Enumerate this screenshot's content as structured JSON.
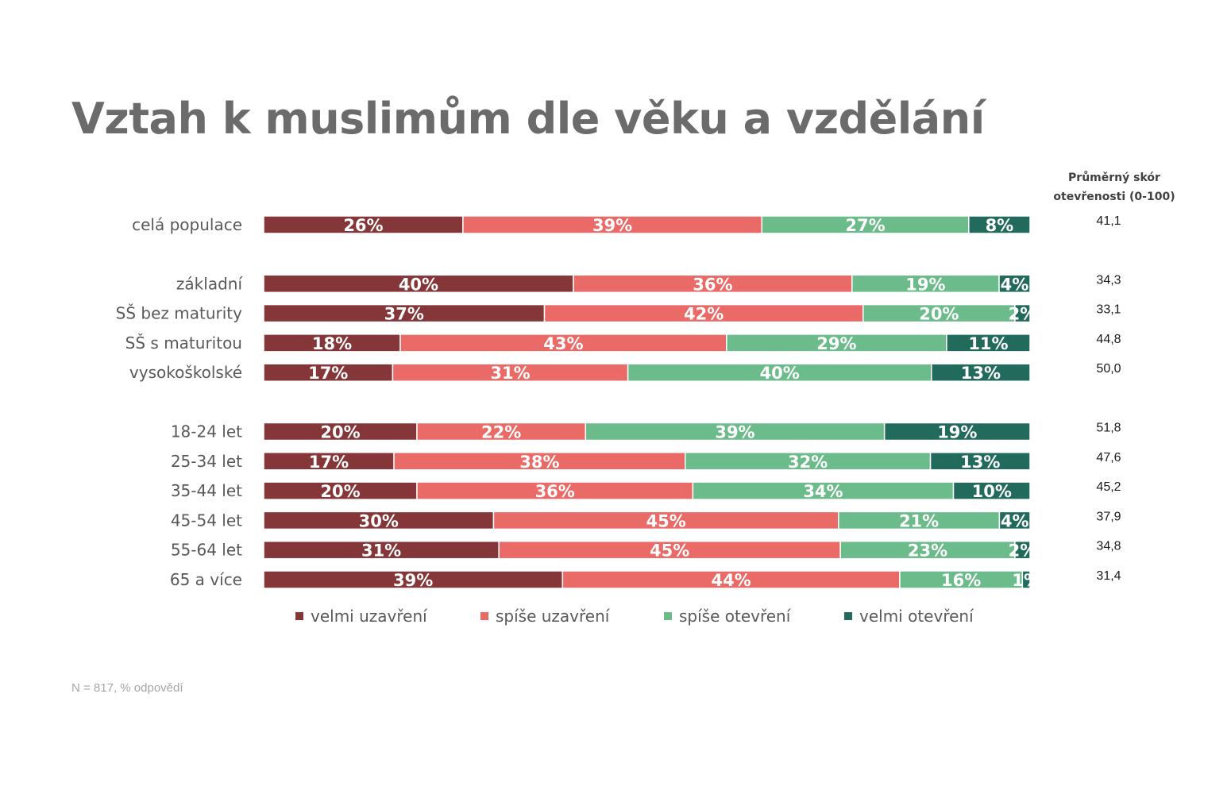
{
  "title": "Vztah k muslimům dle věku a vzdělání",
  "score_header": [
    "Průměrný skór",
    "otevřenosti (0-100)"
  ],
  "footnote": "N = 817, % odpovědí",
  "colors": {
    "velmi_uzavreni": "#843638",
    "spise_uzavreni": "#E96A67",
    "spise_otevreni": "#6CBB8B",
    "velmi_otevreni": "#226B5C",
    "title": "#6b6b6b"
  },
  "chart_data": {
    "type": "bar",
    "orientation": "horizontal",
    "stacked": true,
    "xlim": [
      0,
      100
    ],
    "categories": [
      "celá populace",
      "základní",
      "SŠ bez maturity",
      "SŠ s maturitou",
      "vysokoškolské",
      "18-24 let",
      "25-34 let",
      "35-44 let",
      "45-54 let",
      "55-64 let",
      "65 a více"
    ],
    "groups": [
      [
        0
      ],
      [
        1,
        2,
        3,
        4
      ],
      [
        5,
        6,
        7,
        8,
        9,
        10
      ]
    ],
    "series": [
      {
        "name": "velmi uzavření",
        "color": "#843638",
        "values": [
          26,
          40,
          37,
          18,
          17,
          20,
          17,
          20,
          30,
          31,
          39
        ]
      },
      {
        "name": "spíše uzavření",
        "color": "#E96A67",
        "values": [
          39,
          36,
          42,
          43,
          31,
          22,
          38,
          36,
          45,
          45,
          44
        ]
      },
      {
        "name": "spíše otevření",
        "color": "#6CBB8B",
        "values": [
          27,
          19,
          20,
          29,
          40,
          39,
          32,
          34,
          21,
          23,
          16
        ]
      },
      {
        "name": "velmi otevření",
        "color": "#226B5C",
        "values": [
          8,
          4,
          2,
          11,
          13,
          19,
          13,
          10,
          4,
          2,
          1
        ]
      }
    ],
    "value_suffix": "%",
    "scores": [
      "41,1",
      "34,3",
      "33,1",
      "44,8",
      "50,0",
      "51,8",
      "47,6",
      "45,2",
      "37,9",
      "34,8",
      "31,4"
    ],
    "legend_position": "bottom"
  }
}
